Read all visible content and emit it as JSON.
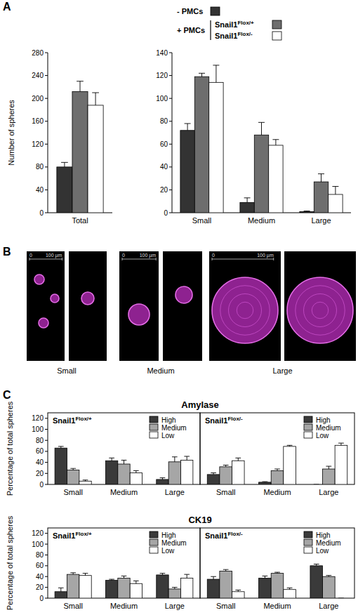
{
  "panel_labels": [
    "A",
    "B",
    "C"
  ],
  "legend_group": "+ PMCs",
  "images": [
    {
      "label": "Small",
      "scale_bar": [
        {
          "value": 0,
          "label": "0"
        },
        {
          "value": 100,
          "label": "100 µm"
        }
      ]
    },
    {
      "label": "Medium",
      "scale_bar": [
        {
          "value": 0,
          "label": "0"
        },
        {
          "value": 100,
          "label": "100 µm"
        }
      ]
    },
    {
      "label": "Large",
      "scale_bar": [
        {
          "value": 0,
          "label": "0"
        },
        {
          "value": 100,
          "label": "100 µm"
        }
      ]
    }
  ],
  "chart_data": [
    {
      "type": "bar",
      "y_label": "Number of spheres",
      "legend": "top",
      "categories": [
        "Total"
      ],
      "ylim": [
        0,
        280
      ],
      "yticks": [
        0,
        40,
        80,
        120,
        160,
        200,
        240,
        280
      ],
      "series": [
        {
          "name": "- PMCs",
          "color": "#333333",
          "values": [
            80
          ],
          "errors": [
            8
          ]
        },
        {
          "name": "Snail1 Flox/+",
          "color": "#6e6e6e",
          "values": [
            212
          ],
          "errors": [
            18
          ]
        },
        {
          "name": "Snail1 Flox/-",
          "color": "#ffffff",
          "values": [
            188
          ],
          "errors": [
            22
          ]
        }
      ]
    },
    {
      "type": "bar",
      "categories": [
        "Small",
        "Medium",
        "Large"
      ],
      "ylim": [
        0,
        140
      ],
      "yticks": [
        0,
        20,
        40,
        60,
        80,
        100,
        120,
        140
      ],
      "series": [
        {
          "color": "#333333",
          "values": [
            72,
            9,
            1
          ],
          "errors": [
            6,
            4,
            0.5
          ]
        },
        {
          "color": "#6e6e6e",
          "values": [
            119,
            68,
            27
          ],
          "errors": [
            3,
            11,
            7
          ]
        },
        {
          "color": "#ffffff",
          "values": [
            114,
            59,
            16
          ],
          "errors": [
            15,
            5,
            7
          ]
        }
      ]
    },
    {
      "type": "bar",
      "title": "Amylase",
      "y_label": "Percentage of total spheres",
      "subtitle": "Snail1 Flox/+",
      "legend": "top-right",
      "categories": [
        "Small",
        "Medium",
        "Large"
      ],
      "ylim": [
        0,
        130
      ],
      "yticks": [
        0,
        20,
        40,
        60,
        80,
        100,
        120
      ],
      "series": [
        {
          "name": "High",
          "color": "#3a3a3a",
          "values": [
            66,
            43,
            9
          ],
          "errors": [
            3,
            5,
            3
          ]
        },
        {
          "name": "Medium",
          "color": "#a6a6a6",
          "values": [
            26,
            37,
            41
          ],
          "errors": [
            3,
            7,
            9
          ]
        },
        {
          "name": "Low",
          "color": "#ffffff",
          "values": [
            6,
            21,
            44
          ],
          "errors": [
            2,
            4,
            7
          ]
        }
      ]
    },
    {
      "type": "bar",
      "subtitle": "Snail1 Flox/-",
      "legend": "top-right",
      "tick_labels": "x",
      "categories": [
        "Small",
        "Medium",
        "Large"
      ],
      "ylim": [
        0,
        130
      ],
      "series": [
        {
          "name": "High",
          "color": "#3a3a3a",
          "values": [
            18,
            4,
            0
          ],
          "errors": [
            3,
            1,
            0
          ]
        },
        {
          "name": "Medium",
          "color": "#a6a6a6",
          "values": [
            32,
            25,
            28
          ],
          "errors": [
            3,
            3,
            5
          ]
        },
        {
          "name": "Low",
          "color": "#ffffff",
          "values": [
            43,
            69,
            71
          ],
          "errors": [
            5,
            2,
            4
          ]
        }
      ]
    },
    {
      "type": "bar",
      "title": "CK19",
      "y_label": "Percentage of total spheres",
      "subtitle": "Snail1 Flox/+",
      "legend": "top-right",
      "categories": [
        "Small",
        "Medium",
        "Large"
      ],
      "ylim": [
        0,
        130
      ],
      "yticks": [
        0,
        20,
        40,
        60,
        80,
        100,
        120
      ],
      "series": [
        {
          "name": "High",
          "color": "#3a3a3a",
          "values": [
            12,
            33,
            43
          ],
          "errors": [
            7,
            2,
            3
          ]
        },
        {
          "name": "Medium",
          "color": "#a6a6a6",
          "values": [
            44,
            37,
            17
          ],
          "errors": [
            3,
            4,
            3
          ]
        },
        {
          "name": "Low",
          "color": "#ffffff",
          "values": [
            42,
            27,
            37
          ],
          "errors": [
            4,
            5,
            7
          ]
        }
      ]
    },
    {
      "type": "bar",
      "subtitle": "Snail1 Flox/-",
      "legend": "top-right",
      "tick_labels": "x",
      "categories": [
        "Small",
        "Medium",
        "Large"
      ],
      "ylim": [
        0,
        130
      ],
      "series": [
        {
          "name": "High",
          "color": "#3a3a3a",
          "values": [
            35,
            37,
            60
          ],
          "errors": [
            5,
            4,
            3
          ]
        },
        {
          "name": "Medium",
          "color": "#a6a6a6",
          "values": [
            50,
            46,
            40
          ],
          "errors": [
            3,
            2,
            2
          ]
        },
        {
          "name": "Low",
          "color": "#ffffff",
          "values": [
            12,
            16,
            0
          ],
          "errors": [
            3,
            3,
            0
          ]
        }
      ]
    }
  ]
}
